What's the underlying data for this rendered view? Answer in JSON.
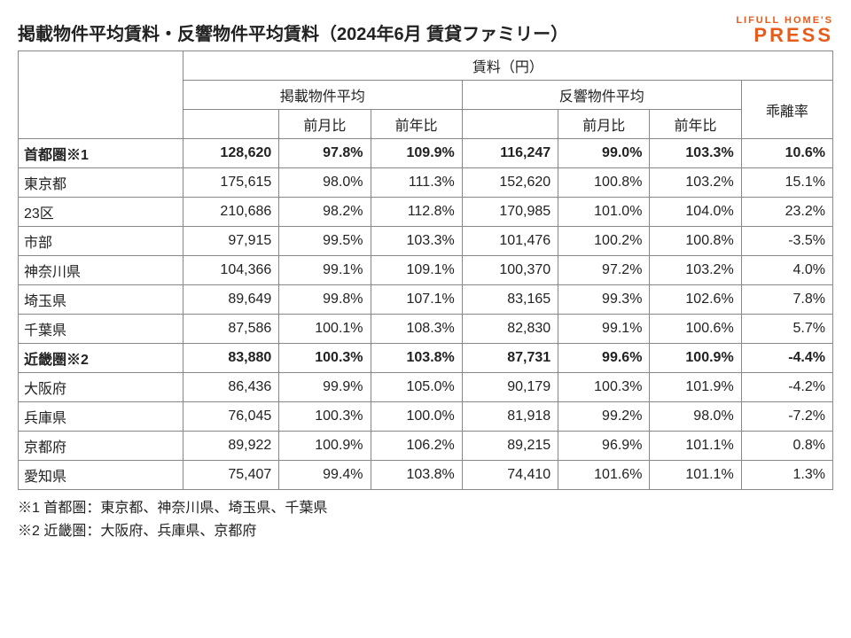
{
  "title": "掲載物件平均賃料・反響物件平均賃料（2024年6月 賃貸ファミリー）",
  "brand": {
    "top": "LIFULL HOME'S",
    "bottom": "PRESS",
    "color": "#e85c1b"
  },
  "table": {
    "super_header": "賃料（円）",
    "group_listed": "掲載物件平均",
    "group_response": "反響物件平均",
    "col_mom": "前月比",
    "col_yoy": "前年比",
    "col_dev": "乖離率",
    "rows": [
      {
        "label": "首都圏※1",
        "indent": 1,
        "bold": true,
        "listed": "128,620",
        "l_mom": "97.8%",
        "l_yoy": "109.9%",
        "resp": "116,247",
        "r_mom": "99.0%",
        "r_yoy": "103.3%",
        "dev": "10.6%"
      },
      {
        "label": "東京都",
        "indent": 1,
        "bold": false,
        "listed": "175,615",
        "l_mom": "98.0%",
        "l_yoy": "111.3%",
        "resp": "152,620",
        "r_mom": "100.8%",
        "r_yoy": "103.2%",
        "dev": "15.1%"
      },
      {
        "label": "23区",
        "indent": 2,
        "bold": false,
        "listed": "210,686",
        "l_mom": "98.2%",
        "l_yoy": "112.8%",
        "resp": "170,985",
        "r_mom": "101.0%",
        "r_yoy": "104.0%",
        "dev": "23.2%"
      },
      {
        "label": "市部",
        "indent": 2,
        "bold": false,
        "listed": "97,915",
        "l_mom": "99.5%",
        "l_yoy": "103.3%",
        "resp": "101,476",
        "r_mom": "100.2%",
        "r_yoy": "100.8%",
        "dev": "-3.5%"
      },
      {
        "label": "神奈川県",
        "indent": 1,
        "bold": false,
        "listed": "104,366",
        "l_mom": "99.1%",
        "l_yoy": "109.1%",
        "resp": "100,370",
        "r_mom": "97.2%",
        "r_yoy": "103.2%",
        "dev": "4.0%"
      },
      {
        "label": "埼玉県",
        "indent": 1,
        "bold": false,
        "listed": "89,649",
        "l_mom": "99.8%",
        "l_yoy": "107.1%",
        "resp": "83,165",
        "r_mom": "99.3%",
        "r_yoy": "102.6%",
        "dev": "7.8%"
      },
      {
        "label": "千葉県",
        "indent": 1,
        "bold": false,
        "listed": "87,586",
        "l_mom": "100.1%",
        "l_yoy": "108.3%",
        "resp": "82,830",
        "r_mom": "99.1%",
        "r_yoy": "100.6%",
        "dev": "5.7%"
      },
      {
        "label": "近畿圏※2",
        "indent": 1,
        "bold": true,
        "listed": "83,880",
        "l_mom": "100.3%",
        "l_yoy": "103.8%",
        "resp": "87,731",
        "r_mom": "99.6%",
        "r_yoy": "100.9%",
        "dev": "-4.4%"
      },
      {
        "label": "大阪府",
        "indent": 1,
        "bold": false,
        "listed": "86,436",
        "l_mom": "99.9%",
        "l_yoy": "105.0%",
        "resp": "90,179",
        "r_mom": "100.3%",
        "r_yoy": "101.9%",
        "dev": "-4.2%"
      },
      {
        "label": "兵庫県",
        "indent": 1,
        "bold": false,
        "listed": "76,045",
        "l_mom": "100.3%",
        "l_yoy": "100.0%",
        "resp": "81,918",
        "r_mom": "99.2%",
        "r_yoy": "98.0%",
        "dev": "-7.2%"
      },
      {
        "label": "京都府",
        "indent": 1,
        "bold": false,
        "listed": "89,922",
        "l_mom": "100.9%",
        "l_yoy": "106.2%",
        "resp": "89,215",
        "r_mom": "96.9%",
        "r_yoy": "101.1%",
        "dev": "0.8%"
      },
      {
        "label": "愛知県",
        "indent": 1,
        "bold": false,
        "listed": "75,407",
        "l_mom": "99.4%",
        "l_yoy": "103.8%",
        "resp": "74,410",
        "r_mom": "101.6%",
        "r_yoy": "101.1%",
        "dev": "1.3%"
      }
    ]
  },
  "footnotes": [
    "※1 首都圏：東京都、神奈川県、埼玉県、千葉県",
    "※2 近畿圏：大阪府、兵庫県、京都府"
  ],
  "style": {
    "border_color": "#888888",
    "bg": "#ffffff",
    "title_fontsize": 20,
    "cell_fontsize": 16,
    "brand_top_fontsize": 11,
    "brand_bottom_fontsize": 22
  }
}
